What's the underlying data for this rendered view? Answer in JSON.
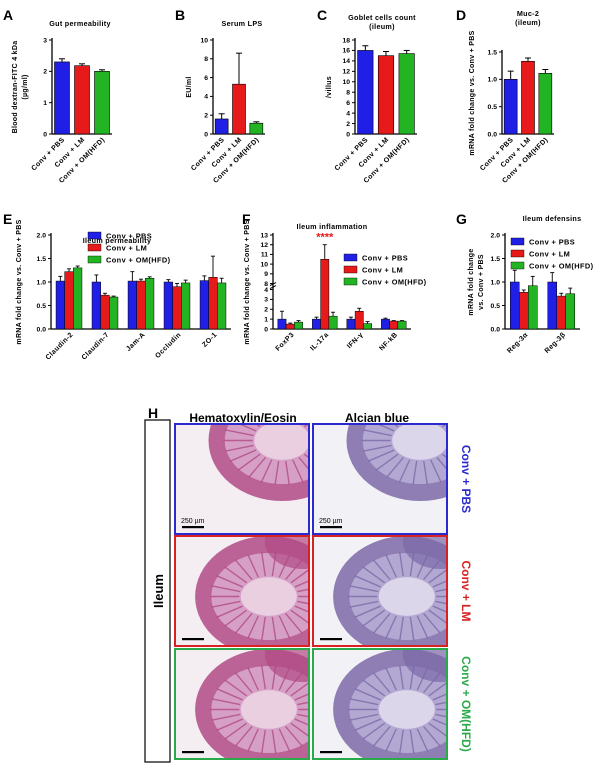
{
  "colors": {
    "blue": "#1f1fe6",
    "red": "#e61a1a",
    "green": "#22b422",
    "axis": "#000000",
    "sig": "#e61a1a"
  },
  "chart_data": [
    {
      "panel": "A",
      "type": "bar",
      "title": "Gut permeability",
      "ylabel": "Blood dextran-FITC 4 kDa (µg/ml)",
      "categories": [
        "Conv + PBS",
        "Conv + LM",
        "Conv + OM(HFD)"
      ],
      "values": [
        2.3,
        2.18,
        2.0
      ],
      "errors": [
        0.1,
        0.06,
        0.05
      ],
      "ylim": [
        0,
        3
      ],
      "yticks": [
        0,
        1,
        2,
        3
      ]
    },
    {
      "panel": "B",
      "type": "bar",
      "title": "Serum LPS",
      "ylabel": "EU/ml",
      "categories": [
        "Conv + PBS",
        "Conv + LM",
        "Conv + OM(HFD)"
      ],
      "values": [
        1.6,
        5.3,
        1.15
      ],
      "errors": [
        0.55,
        3.3,
        0.15
      ],
      "ylim": [
        0,
        10
      ],
      "yticks": [
        0,
        2,
        4,
        6,
        8,
        10
      ]
    },
    {
      "panel": "C",
      "type": "bar",
      "title": "Goblet cells count (ileum)",
      "ylabel": "/villus",
      "categories": [
        "Conv + PBS",
        "Conv + LM",
        "Conv + OM(HFD)"
      ],
      "values": [
        16.0,
        15.0,
        15.4
      ],
      "errors": [
        0.9,
        0.8,
        0.6
      ],
      "ylim": [
        0,
        18
      ],
      "yticks": [
        0,
        2,
        4,
        6,
        8,
        10,
        12,
        14,
        16,
        18
      ]
    },
    {
      "panel": "D",
      "type": "bar",
      "title": "Muc-2 (ileum)",
      "ylabel": "mRNA fold change vs. Conv + PBS",
      "categories": [
        "Conv + PBS",
        "Conv + LM",
        "Conv + OM(HFD)"
      ],
      "values": [
        1.0,
        1.33,
        1.11
      ],
      "errors": [
        0.15,
        0.06,
        0.07
      ],
      "ylim": [
        0,
        1.5
      ],
      "yticks": [
        "0.0",
        "0.5",
        "1.0",
        "1.5"
      ]
    },
    {
      "panel": "E",
      "type": "bar",
      "title": "Ileum permeability",
      "ylabel": "mRNA fold change vs. Conv + PBS",
      "categories": [
        "Claudin-2",
        "Claudin-7",
        "Jam-A",
        "Occludin",
        "ZO-1"
      ],
      "series": [
        {
          "name": "Conv + PBS",
          "values": [
            1.02,
            1.0,
            1.02,
            1.0,
            1.03
          ],
          "errors": [
            0.1,
            0.15,
            0.2,
            0.05,
            0.1
          ]
        },
        {
          "name": "Conv + LM",
          "values": [
            1.22,
            0.72,
            1.02,
            0.9,
            1.1
          ],
          "errors": [
            0.06,
            0.04,
            0.04,
            0.07,
            0.45
          ]
        },
        {
          "name": "Conv + OM(HFD)",
          "values": [
            1.3,
            0.68,
            1.08,
            0.98,
            0.98
          ],
          "errors": [
            0.04,
            0.02,
            0.03,
            0.06,
            0.1
          ]
        }
      ],
      "ylim": [
        0,
        2
      ],
      "yticks": [
        "0.0",
        "0.5",
        "1.0",
        "1.5",
        "2.0"
      ],
      "legend": "top-right"
    },
    {
      "panel": "F",
      "type": "bar",
      "title": "Ileum inflammation",
      "ylabel": "mRNA fold change vs. Conv + PBS",
      "categories": [
        "FoxP3",
        "IL-17a",
        "IFN-γ",
        "NF-kB"
      ],
      "series": [
        {
          "name": "Conv + PBS",
          "values": [
            1.0,
            1.0,
            1.0,
            1.0
          ],
          "errors": [
            0.8,
            0.2,
            0.2,
            0.1
          ]
        },
        {
          "name": "Conv + LM",
          "values": [
            0.5,
            10.5,
            1.8,
            0.8
          ],
          "errors": [
            0.1,
            1.5,
            0.3,
            0.05
          ]
        },
        {
          "name": "Conv + OM(HFD)",
          "values": [
            0.7,
            1.3,
            0.55,
            0.8
          ],
          "errors": [
            0.15,
            0.4,
            0.2,
            0.05
          ]
        }
      ],
      "ylim": [
        0,
        13
      ],
      "yticks": [
        0,
        1,
        2,
        3,
        4,
        5,
        6,
        7,
        8,
        9,
        10,
        11,
        12,
        13
      ],
      "axis_break": [
        4,
        8
      ],
      "annotation": "****",
      "legend": "top-right"
    },
    {
      "panel": "G",
      "type": "bar",
      "title": "Ileum defensins",
      "ylabel": "mRNA fold change vs. Conv + PBS",
      "categories": [
        "Reg-3α",
        "Reg-3β"
      ],
      "series": [
        {
          "name": "Conv + PBS",
          "values": [
            1.0,
            1.0
          ],
          "errors": [
            0.25,
            0.2
          ]
        },
        {
          "name": "Conv + LM",
          "values": [
            0.78,
            0.7
          ],
          "errors": [
            0.05,
            0.06
          ]
        },
        {
          "name": "Conv + OM(HFD)",
          "values": [
            0.92,
            0.75
          ],
          "errors": [
            0.2,
            0.12
          ]
        }
      ],
      "ylim": [
        0,
        2
      ],
      "yticks": [
        "0.0",
        "0.5",
        "1.0",
        "1.5",
        "2.0"
      ],
      "legend": "top-right"
    }
  ],
  "histology": {
    "panel": "H",
    "column_titles": [
      "Hematoxylin/Eosin",
      "Alcian blue"
    ],
    "row_group_label": "Ileum",
    "rows": [
      "Conv + PBS",
      "Conv + LM",
      "Conv + OM(HFD)"
    ],
    "row_colors": [
      "#2a2ad0",
      "#d82222",
      "#2aaa4a"
    ],
    "scale_bar": "250 µm"
  }
}
